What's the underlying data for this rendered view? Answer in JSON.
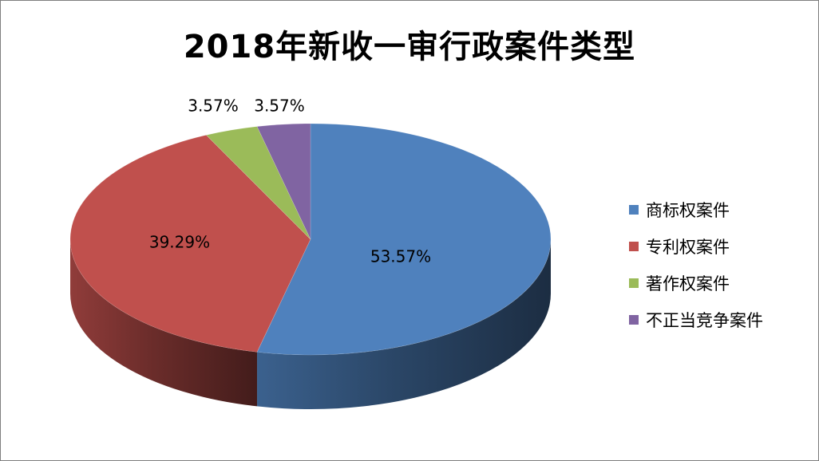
{
  "chart_data": {
    "type": "pie",
    "title": "2018年新收一审行政案件类型",
    "categories": [
      "商标权案件",
      "专利权案件",
      "著作权案件",
      "不正当竞争案件"
    ],
    "values": [
      53.57,
      39.29,
      3.57,
      3.57
    ],
    "data_labels": [
      "53.57%",
      "39.29%",
      "3.57%",
      "3.57%"
    ],
    "colors": [
      "#4f81bd",
      "#c0504d",
      "#9bbb59",
      "#8064a2"
    ],
    "legend_position": "right",
    "style": "3d"
  }
}
